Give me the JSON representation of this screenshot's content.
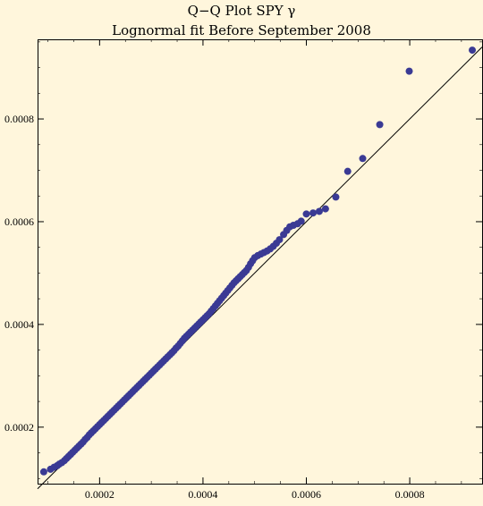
{
  "chart_data": {
    "type": "scatter",
    "title_line1": "Q−Q Plot SPY γ",
    "title_line2": "Lognormal fit Before September 2008",
    "xlabel": "",
    "ylabel": "",
    "xlim": [
      8e-05,
      0.00094
    ],
    "ylim": [
      9e-05,
      0.000955
    ],
    "x_ticks": [
      {
        "value": 0.0002,
        "label": "0.0002"
      },
      {
        "value": 0.0004,
        "label": "0.0004"
      },
      {
        "value": 0.0006,
        "label": "0.0006"
      },
      {
        "value": 0.0008,
        "label": "0.0008"
      }
    ],
    "y_ticks": [
      {
        "value": 0.0002,
        "label": "0.0002"
      },
      {
        "value": 0.0004,
        "label": "0.0004"
      },
      {
        "value": 0.0006,
        "label": "0.0006"
      },
      {
        "value": 0.0008,
        "label": "0.0008"
      }
    ],
    "reference_line": {
      "from": [
        8e-05,
        8e-05
      ],
      "to": [
        0.00094,
        0.00094
      ]
    },
    "marker_color": "#3a3a94",
    "line_color": "#000000",
    "background_color": "#fff6dc",
    "points": [
      [
        9.2e-05,
        0.000113
      ],
      [
        0.000105,
        0.000118
      ],
      [
        0.000112,
        0.000122
      ],
      [
        0.000118,
        0.000125
      ],
      [
        0.000122,
        0.000128
      ],
      [
        0.000127,
        0.000131
      ],
      [
        0.000132,
        0.000135
      ],
      [
        0.000136,
        0.000139
      ],
      [
        0.00014,
        0.000143
      ],
      [
        0.000144,
        0.000147
      ],
      [
        0.000148,
        0.000151
      ],
      [
        0.000152,
        0.000155
      ],
      [
        0.000156,
        0.000159
      ],
      [
        0.00016,
        0.000163
      ],
      [
        0.000164,
        0.000167
      ],
      [
        0.000168,
        0.000171
      ],
      [
        0.000172,
        0.000176
      ],
      [
        0.000176,
        0.00018
      ],
      [
        0.00018,
        0.000185
      ],
      [
        0.000184,
        0.000189
      ],
      [
        0.000188,
        0.000193
      ],
      [
        0.000192,
        0.000197
      ],
      [
        0.000196,
        0.000201
      ],
      [
        0.0002,
        0.000205
      ],
      [
        0.000204,
        0.000209
      ],
      [
        0.000208,
        0.000213
      ],
      [
        0.000212,
        0.000217
      ],
      [
        0.000216,
        0.000221
      ],
      [
        0.00022,
        0.000225
      ],
      [
        0.000224,
        0.000229
      ],
      [
        0.000228,
        0.000233
      ],
      [
        0.000232,
        0.000237
      ],
      [
        0.000236,
        0.000241
      ],
      [
        0.00024,
        0.000245
      ],
      [
        0.000244,
        0.000249
      ],
      [
        0.000248,
        0.000253
      ],
      [
        0.000252,
        0.000257
      ],
      [
        0.000256,
        0.000261
      ],
      [
        0.00026,
        0.000265
      ],
      [
        0.000264,
        0.000269
      ],
      [
        0.000268,
        0.000273
      ],
      [
        0.000272,
        0.000277
      ],
      [
        0.000276,
        0.000281
      ],
      [
        0.00028,
        0.000285
      ],
      [
        0.000284,
        0.000289
      ],
      [
        0.000288,
        0.000293
      ],
      [
        0.000292,
        0.000297
      ],
      [
        0.000296,
        0.000301
      ],
      [
        0.0003,
        0.000305
      ],
      [
        0.000304,
        0.000309
      ],
      [
        0.000308,
        0.000313
      ],
      [
        0.000312,
        0.000317
      ],
      [
        0.000316,
        0.000321
      ],
      [
        0.00032,
        0.000325
      ],
      [
        0.000324,
        0.000329
      ],
      [
        0.000328,
        0.000333
      ],
      [
        0.000332,
        0.000337
      ],
      [
        0.000336,
        0.000341
      ],
      [
        0.00034,
        0.000345
      ],
      [
        0.000344,
        0.000349
      ],
      [
        0.000348,
        0.000354
      ],
      [
        0.000352,
        0.000358
      ],
      [
        0.000356,
        0.000363
      ],
      [
        0.00036,
        0.000368
      ],
      [
        0.000364,
        0.000373
      ],
      [
        0.000368,
        0.000377
      ],
      [
        0.000372,
        0.000381
      ],
      [
        0.000376,
        0.000385
      ],
      [
        0.00038,
        0.000389
      ],
      [
        0.000384,
        0.000393
      ],
      [
        0.000388,
        0.000397
      ],
      [
        0.000392,
        0.000401
      ],
      [
        0.000396,
        0.000405
      ],
      [
        0.0004,
        0.000409
      ],
      [
        0.000404,
        0.000413
      ],
      [
        0.000408,
        0.000417
      ],
      [
        0.000412,
        0.000421
      ],
      [
        0.000416,
        0.000426
      ],
      [
        0.00042,
        0.000431
      ],
      [
        0.000424,
        0.000436
      ],
      [
        0.000428,
        0.000441
      ],
      [
        0.000432,
        0.000446
      ],
      [
        0.000436,
        0.000451
      ],
      [
        0.00044,
        0.000456
      ],
      [
        0.000444,
        0.000461
      ],
      [
        0.000448,
        0.000466
      ],
      [
        0.000452,
        0.000471
      ],
      [
        0.000456,
        0.000476
      ],
      [
        0.00046,
        0.000481
      ],
      [
        0.000464,
        0.000485
      ],
      [
        0.000468,
        0.000489
      ],
      [
        0.000472,
        0.000493
      ],
      [
        0.000476,
        0.000497
      ],
      [
        0.00048,
        0.000501
      ],
      [
        0.000484,
        0.000505
      ],
      [
        0.000488,
        0.000511
      ],
      [
        0.000492,
        0.000518
      ],
      [
        0.000496,
        0.000524
      ],
      [
        0.0005,
        0.00053
      ],
      [
        0.000506,
        0.000534
      ],
      [
        0.000512,
        0.000537
      ],
      [
        0.000518,
        0.00054
      ],
      [
        0.000524,
        0.000543
      ],
      [
        0.00053,
        0.000547
      ],
      [
        0.000536,
        0.000552
      ],
      [
        0.000542,
        0.000558
      ],
      [
        0.000548,
        0.000565
      ],
      [
        0.000556,
        0.000575
      ],
      [
        0.000562,
        0.000583
      ],
      [
        0.000568,
        0.00059
      ],
      [
        0.000575,
        0.000593
      ],
      [
        0.000583,
        0.000596
      ],
      [
        0.00059,
        0.000601
      ],
      [
        0.0006,
        0.000615
      ],
      [
        0.000613,
        0.000617
      ],
      [
        0.000625,
        0.00062
      ],
      [
        0.000637,
        0.000625
      ],
      [
        0.000657,
        0.000648
      ],
      [
        0.00068,
        0.000698
      ],
      [
        0.000709,
        0.000723
      ],
      [
        0.000742,
        0.000789
      ],
      [
        0.000799,
        0.000893
      ],
      [
        0.000921,
        0.000934
      ]
    ]
  }
}
